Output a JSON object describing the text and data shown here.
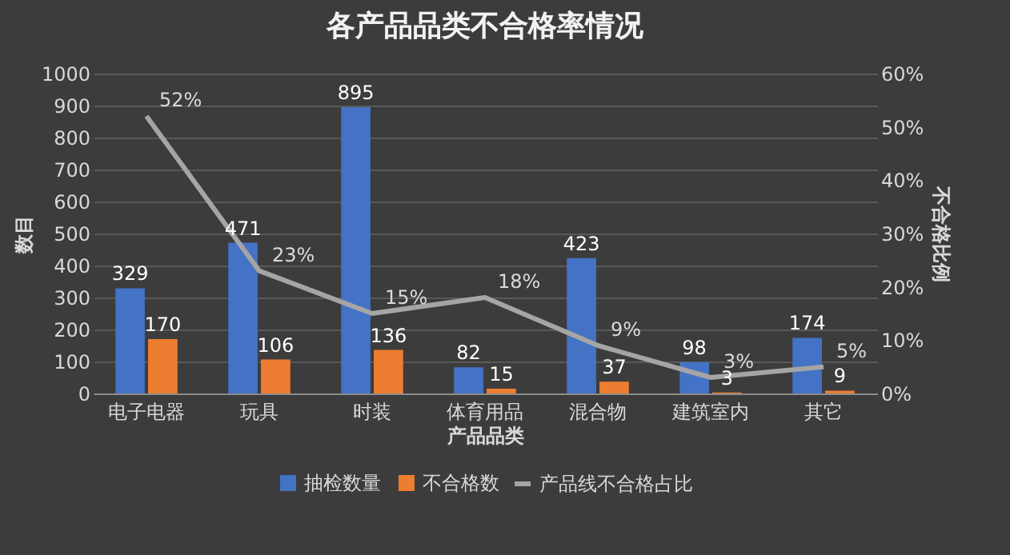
{
  "chart_data": {
    "type": "bar",
    "title": "各产品品类不合格率情况",
    "xlabel": "产品品类",
    "ylabel": "数目",
    "y2label": "不合格比例",
    "categories": [
      "电子电器",
      "玩具",
      "时装",
      "体育用品",
      "混合物",
      "建筑室内",
      "其它"
    ],
    "series": [
      {
        "name": "抽检数量",
        "color": "#4472c4",
        "values": [
          329,
          471,
          895,
          82,
          423,
          98,
          174
        ]
      },
      {
        "name": "不合格数",
        "color": "#ed7d31",
        "values": [
          170,
          106,
          136,
          15,
          37,
          3,
          9
        ]
      },
      {
        "name": "产品线不合格占比",
        "type": "line",
        "axis": "y2",
        "color": "#a5a5a5",
        "values": [
          52,
          23,
          15,
          18,
          9,
          3,
          5
        ],
        "value_labels": [
          "52%",
          "23%",
          "15%",
          "18%",
          "9%",
          "3%",
          "5%"
        ]
      }
    ],
    "data_labels": true,
    "ylim": [
      0,
      1000
    ],
    "yticks": [
      0,
      100,
      200,
      300,
      400,
      500,
      600,
      700,
      800,
      900,
      1000
    ],
    "y2lim": [
      0,
      60
    ],
    "y2ticks": [
      {
        "value": 0,
        "label": "0%"
      },
      {
        "value": 10,
        "label": "10%"
      },
      {
        "value": 20,
        "label": "20%"
      },
      {
        "value": 30,
        "label": "30%"
      },
      {
        "value": 40,
        "label": "40%"
      },
      {
        "value": 50,
        "label": "50%"
      },
      {
        "value": 60,
        "label": "60%"
      }
    ],
    "grid": "y",
    "legend": "bottom"
  }
}
